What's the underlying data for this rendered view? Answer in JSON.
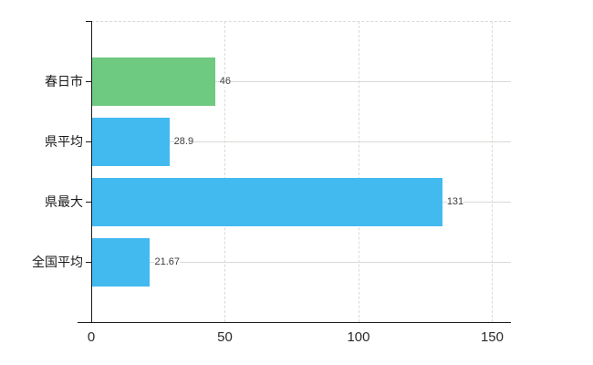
{
  "chart_data": {
    "type": "bar",
    "orientation": "horizontal",
    "title": "",
    "categories": [
      "春日市",
      "県平均",
      "県最大",
      "全国平均"
    ],
    "values": [
      46,
      28.9,
      131,
      21.67
    ],
    "value_labels": [
      "46",
      "28.9",
      "131",
      "21.67"
    ],
    "bar_colors": [
      "#6ec981",
      "#42baf0",
      "#42baf0",
      "#42baf0"
    ],
    "x_ticks": [
      0,
      50,
      100,
      150
    ],
    "x_tick_labels": [
      "0",
      "50",
      "100",
      "150"
    ],
    "xlim": [
      0,
      157
    ],
    "grid": true,
    "legend": false,
    "colors": {
      "green_bar": "#6ec981",
      "blue_bar": "#42baf0",
      "gridline": "#d7dbd5",
      "axis": "#1a1a1a",
      "category_text": "#1a1a1a",
      "value_text": "#3c3c3c",
      "background": "#ffffff"
    }
  }
}
